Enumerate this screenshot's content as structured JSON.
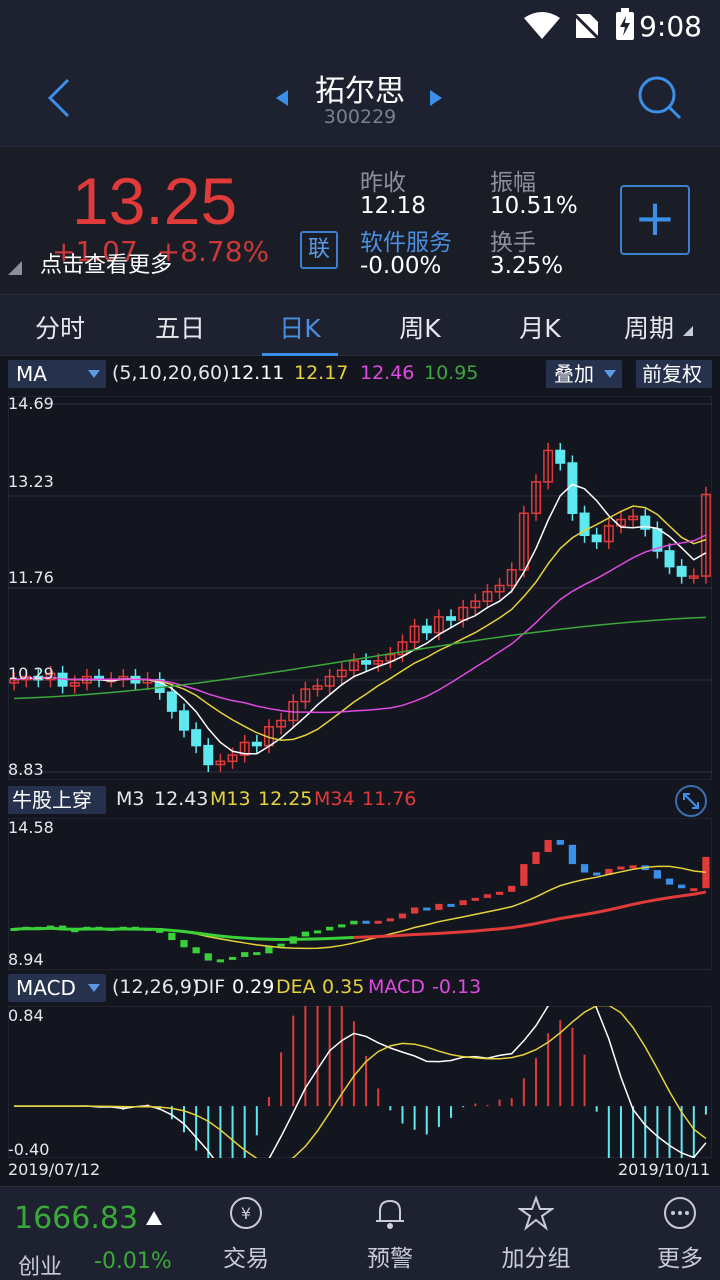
{
  "status": {
    "time": "9:08"
  },
  "header": {
    "name": "拓尔思",
    "code": "300229"
  },
  "quote": {
    "price": "13.25",
    "change": "+1.07",
    "change_pct": "+8.78%",
    "see_more": "点击查看更多",
    "badge": "联",
    "prev_close_label": "昨收",
    "prev_close": "12.18",
    "amplitude_label": "振幅",
    "amplitude": "10.51%",
    "sector_label": "软件服务",
    "sector_change": "-0.00%",
    "turnover_label": "换手",
    "turnover": "3.25%",
    "plus": "+"
  },
  "tabs": [
    "分时",
    "五日",
    "日K",
    "周K",
    "月K",
    "周期"
  ],
  "main_chart": {
    "indicator": "MA",
    "params": "(5,10,20,60)",
    "ma5": "12.11",
    "ma10": "12.17",
    "ma20": "12.46",
    "ma60": "10.95",
    "overlay_btn": "叠加",
    "adjust_btn": "前复权",
    "y_labels": [
      "14.69",
      "13.23",
      "11.76",
      "10.29",
      "8.83"
    ]
  },
  "bull_chart": {
    "indicator": "牛股上穿",
    "m3_label": "M3",
    "m3": "12.43",
    "m13_label": "M13",
    "m13": "12.25",
    "m34_label": "M34",
    "m34": "11.76",
    "y_labels": [
      "14.58",
      "8.94"
    ]
  },
  "macd_chart": {
    "indicator": "MACD",
    "params": "(12,26,9)",
    "dif_label": "DIF",
    "dif": "0.29",
    "dea_label": "DEA",
    "dea": "0.35",
    "macd_label": "MACD",
    "macd": "-0.13",
    "y_labels": [
      "0.84",
      "-0.40"
    ],
    "date_start": "2019/07/12",
    "date_end": "2019/10/11"
  },
  "colors": {
    "up": "#e03a3a",
    "down": "#5ee8f0",
    "ma5": "#ffffff",
    "ma10": "#e6d23a",
    "ma20": "#e04ae0",
    "ma60": "#3aa83a"
  },
  "bottom": {
    "index_value": "1666.83",
    "index_name": "创业",
    "index_change": "-0.01%",
    "nav": [
      {
        "label": "交易",
        "icon": "yuan-exchange-icon"
      },
      {
        "label": "预警",
        "icon": "bell-icon"
      },
      {
        "label": "加分组",
        "icon": "star-icon"
      },
      {
        "label": "更多",
        "icon": "more-icon"
      }
    ]
  }
}
